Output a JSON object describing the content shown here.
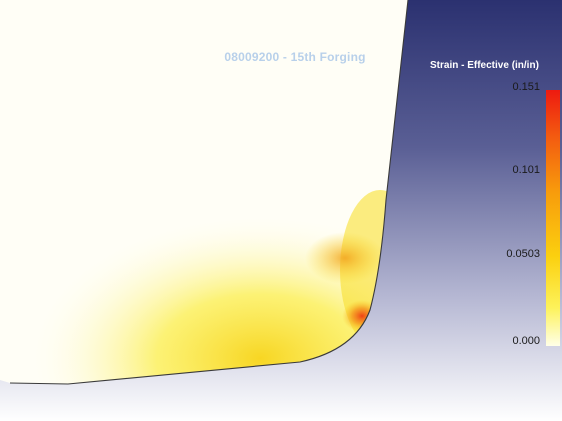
{
  "figure": {
    "title": "08009200 - 15th Forging"
  },
  "legend": {
    "title": "Strain - Effective (in/in)",
    "max_label": "0.151",
    "tick_1": "0.101",
    "tick_2": "0.0503",
    "min_label": "0.000",
    "scale_min": 0.0,
    "scale_max": 0.151,
    "colors": [
      "#ee1a10",
      "#f35a10",
      "#f89c0c",
      "#fbd00f",
      "#fdf25a",
      "#ffffe8"
    ]
  },
  "colors": {
    "background_top": "#2b3170",
    "background_bottom": "#ffffff",
    "part_base": "#fffef6",
    "outline": "#3a3a3a"
  }
}
